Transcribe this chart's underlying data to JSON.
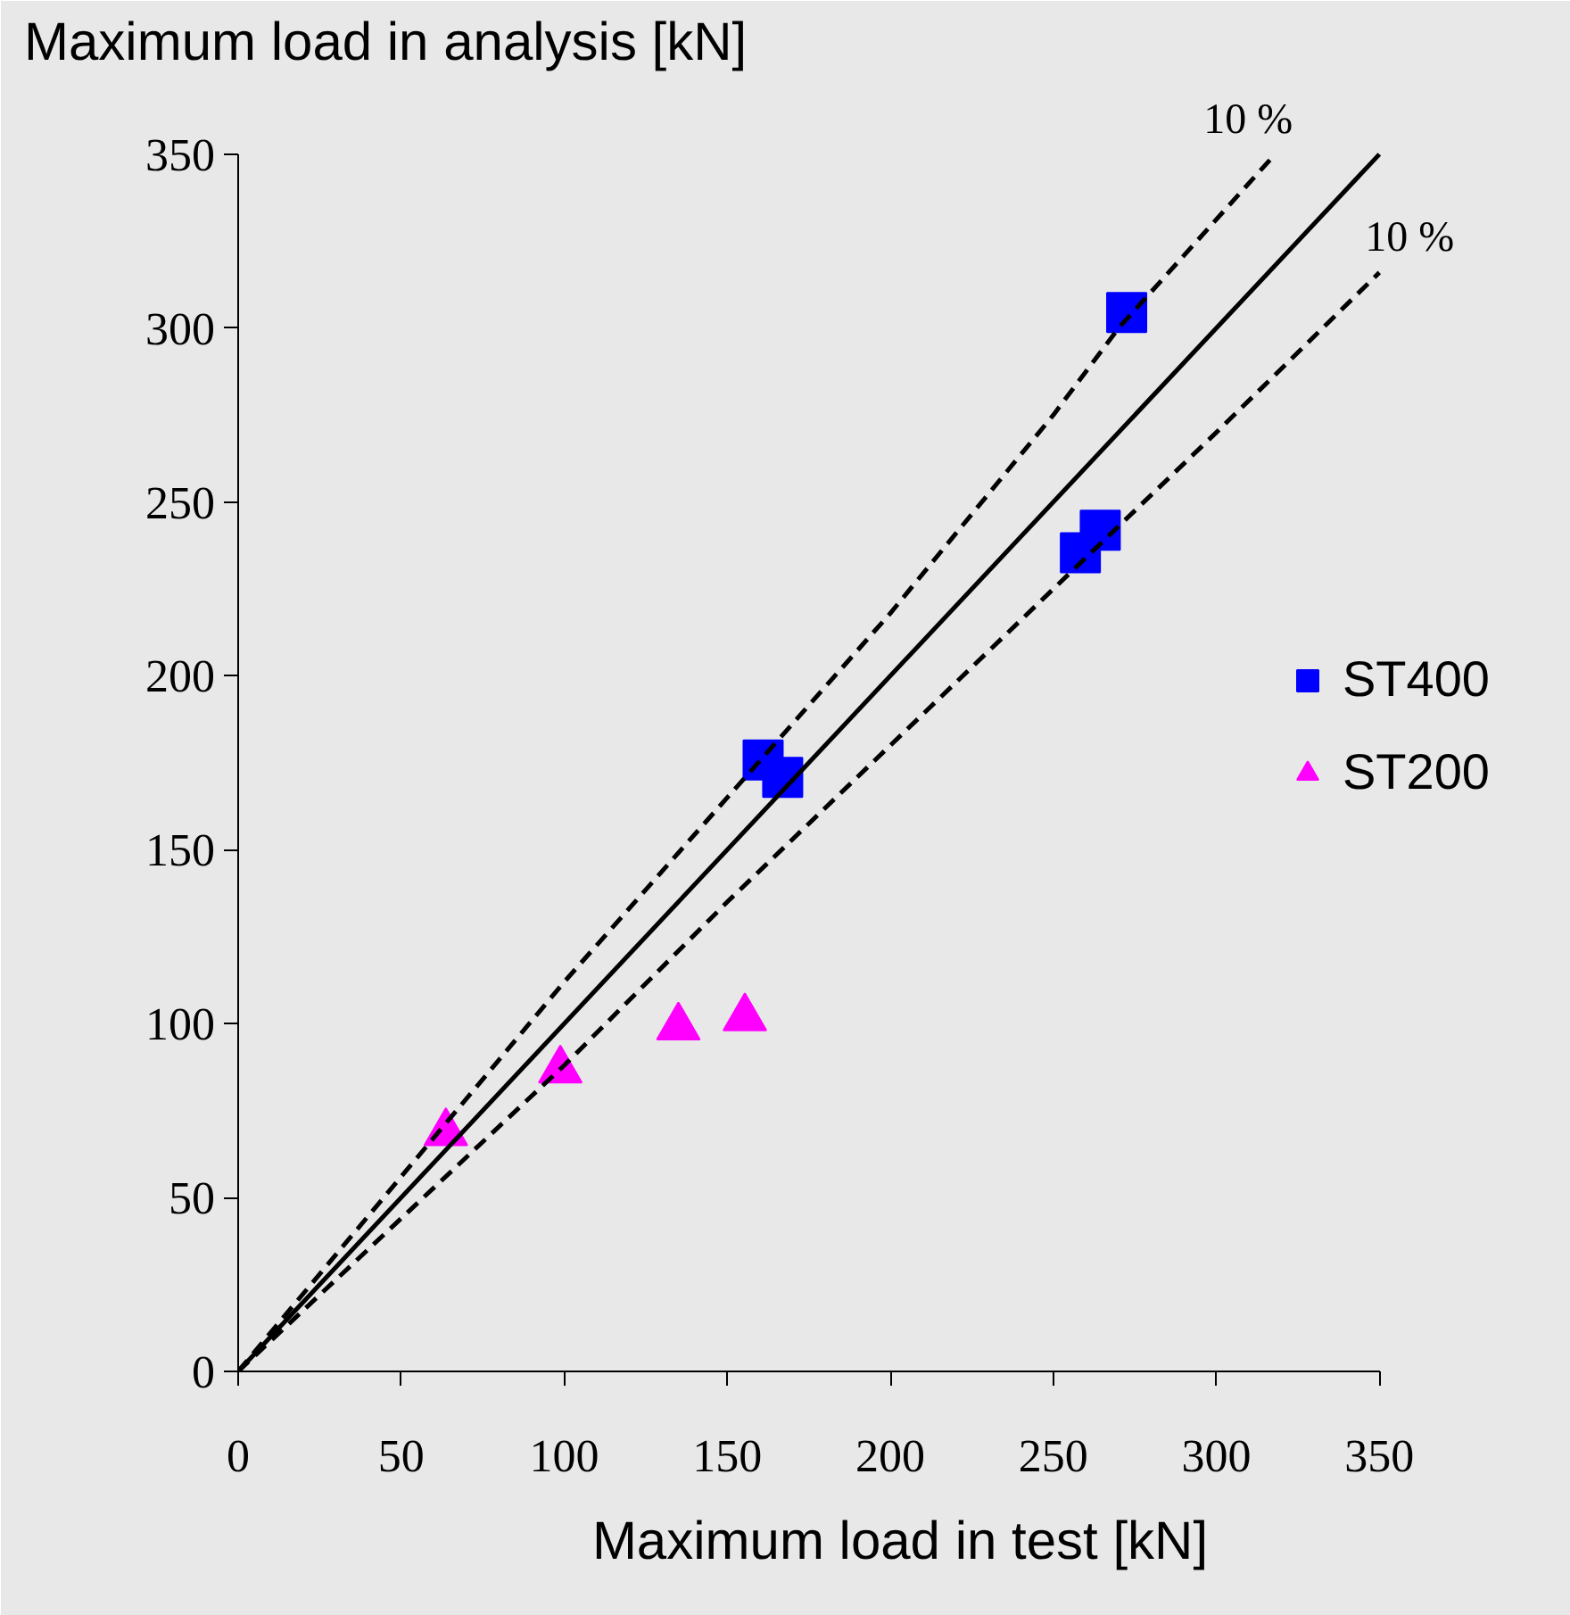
{
  "chart_data": {
    "type": "scatter",
    "xlabel": "Maximum load in test [kN]",
    "ylabel": "Maximum load in analysis [kN]",
    "xlim": [
      0,
      350
    ],
    "ylim": [
      0,
      350
    ],
    "xticks": [
      0,
      50,
      100,
      150,
      200,
      250,
      300,
      350
    ],
    "yticks": [
      0,
      50,
      100,
      150,
      200,
      250,
      300,
      350
    ],
    "legend": "right",
    "series": [
      {
        "name": "ST400",
        "color": "#0000ff",
        "marker": "square",
        "x": [
          272.5,
          161,
          167,
          258.3,
          264.4
        ],
        "values": [
          304.5,
          175.8,
          170.8,
          235.4,
          241.9
        ]
      },
      {
        "name": "ST200",
        "color": "#ff00ff",
        "marker": "triangle",
        "x": [
          63.7,
          98.8,
          135,
          155.4
        ],
        "values": [
          68.6,
          86.6,
          99,
          101.6
        ]
      },
      {
        "type": "line",
        "color": "#000000",
        "line_style": "solid",
        "x": [
          0,
          350
        ],
        "values": [
          0,
          350
        ]
      },
      {
        "type": "line",
        "color": "#000000",
        "line_style": "dashed",
        "x": [
          0,
          50,
          100,
          150,
          200,
          250,
          270,
          318
        ],
        "values": [
          0,
          56,
          112,
          165,
          218,
          275,
          300,
          350
        ]
      },
      {
        "type": "line",
        "color": "#000000",
        "line_style": "dashed",
        "x": [
          0,
          100,
          150,
          200,
          250,
          300,
          350
        ],
        "values": [
          0,
          88,
          135,
          180,
          225,
          270,
          316
        ]
      }
    ],
    "annotations": [
      {
        "text": "10 %",
        "x": 318,
        "y": 350
      },
      {
        "text": "10 %",
        "x": 350,
        "y": 316
      }
    ]
  }
}
